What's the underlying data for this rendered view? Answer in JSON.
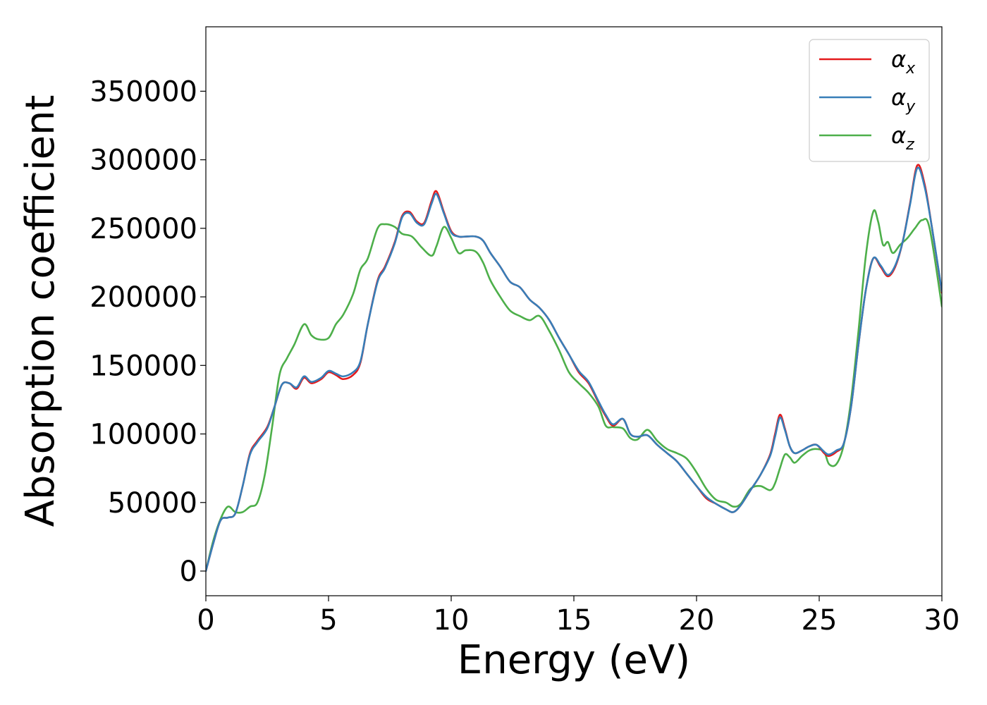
{
  "chart_data": {
    "type": "line",
    "xlabel": "Energy (eV)",
    "ylabel": "Absorption coefficient",
    "xlim": [
      0,
      30
    ],
    "ylim": [
      -18000,
      397000
    ],
    "xticks": [
      0,
      5,
      10,
      15,
      20,
      25,
      30
    ],
    "yticks": [
      0,
      50000,
      100000,
      150000,
      200000,
      250000,
      300000,
      350000
    ],
    "grid": false,
    "legend": {
      "position": "top-right",
      "entries": [
        {
          "base": "α",
          "sub": "x",
          "color": "#e41a1c"
        },
        {
          "base": "α",
          "sub": "y",
          "color": "#377eb8"
        },
        {
          "base": "α",
          "sub": "z",
          "color": "#4daf4a"
        }
      ]
    },
    "series": [
      {
        "name": "αx",
        "color": "#e41a1c",
        "x": [
          0,
          0.3,
          0.6,
          0.9,
          1.2,
          1.5,
          1.8,
          2.1,
          2.5,
          2.8,
          3.1,
          3.4,
          3.7,
          4.0,
          4.3,
          4.7,
          5.0,
          5.3,
          5.6,
          6.0,
          6.3,
          6.6,
          7.0,
          7.3,
          7.7,
          8.0,
          8.3,
          8.6,
          8.9,
          9.2,
          9.4,
          9.7,
          10.0,
          10.3,
          10.6,
          11.0,
          11.3,
          11.6,
          12.0,
          12.4,
          12.8,
          13.2,
          13.6,
          14.0,
          14.4,
          14.8,
          15.2,
          15.6,
          16.0,
          16.3,
          16.6,
          17.0,
          17.3,
          17.6,
          18.0,
          18.4,
          18.8,
          19.2,
          19.6,
          20.0,
          20.4,
          20.8,
          21.2,
          21.5,
          21.8,
          22.2,
          22.6,
          23.0,
          23.2,
          23.4,
          23.6,
          23.8,
          24.0,
          24.3,
          24.6,
          24.9,
          25.2,
          25.4,
          25.7,
          26.0,
          26.3,
          26.6,
          26.9,
          27.2,
          27.5,
          27.8,
          28.1,
          28.4,
          28.7,
          29.0,
          29.3,
          29.6,
          30.0
        ],
        "y": [
          0,
          20000,
          37000,
          39000,
          42000,
          62000,
          86000,
          95000,
          105000,
          120000,
          136000,
          137000,
          133000,
          141000,
          137000,
          140000,
          145000,
          143000,
          140000,
          143000,
          152000,
          180000,
          212000,
          222000,
          240000,
          259000,
          262000,
          255000,
          254000,
          270000,
          277000,
          262000,
          248000,
          244000,
          244000,
          244000,
          241000,
          232000,
          222000,
          211000,
          207000,
          198000,
          192000,
          183000,
          170000,
          158000,
          145000,
          137000,
          123000,
          113000,
          106000,
          111000,
          100000,
          98000,
          99000,
          92000,
          86000,
          80000,
          71000,
          62000,
          53000,
          49000,
          45000,
          43000,
          48000,
          59000,
          70000,
          85000,
          100000,
          114000,
          104000,
          91000,
          86000,
          88000,
          91000,
          92000,
          86000,
          84000,
          87000,
          93000,
          120000,
          165000,
          205000,
          228000,
          222000,
          215000,
          222000,
          240000,
          268000,
          296000,
          282000,
          250000,
          203000
        ]
      },
      {
        "name": "αy",
        "color": "#377eb8",
        "x": [
          0,
          0.3,
          0.6,
          0.9,
          1.2,
          1.5,
          1.8,
          2.1,
          2.5,
          2.8,
          3.1,
          3.4,
          3.7,
          4.0,
          4.3,
          4.7,
          5.0,
          5.3,
          5.6,
          6.0,
          6.3,
          6.6,
          7.0,
          7.3,
          7.7,
          8.0,
          8.3,
          8.6,
          8.9,
          9.2,
          9.4,
          9.7,
          10.0,
          10.3,
          10.6,
          11.0,
          11.3,
          11.6,
          12.0,
          12.4,
          12.8,
          13.2,
          13.6,
          14.0,
          14.4,
          14.8,
          15.2,
          15.6,
          16.0,
          16.3,
          16.6,
          17.0,
          17.3,
          17.6,
          18.0,
          18.4,
          18.8,
          19.2,
          19.6,
          20.0,
          20.4,
          20.8,
          21.2,
          21.5,
          21.8,
          22.2,
          22.6,
          23.0,
          23.2,
          23.4,
          23.6,
          23.8,
          24.0,
          24.3,
          24.6,
          24.9,
          25.2,
          25.4,
          25.7,
          26.0,
          26.3,
          26.6,
          26.9,
          27.2,
          27.5,
          27.8,
          28.1,
          28.4,
          28.7,
          29.0,
          29.3,
          29.6,
          30.0
        ],
        "y": [
          0,
          20000,
          37000,
          39000,
          42000,
          62000,
          85000,
          94000,
          104000,
          120000,
          136000,
          137000,
          134000,
          142000,
          138000,
          141000,
          146000,
          144000,
          142000,
          145000,
          153000,
          180000,
          211000,
          221000,
          239000,
          258000,
          261000,
          254000,
          253000,
          268000,
          275000,
          261000,
          247000,
          244000,
          244000,
          244000,
          241000,
          232000,
          222000,
          211000,
          207000,
          198000,
          192000,
          183000,
          170000,
          158000,
          146000,
          138000,
          124000,
          114000,
          107000,
          111000,
          100000,
          98000,
          99000,
          92000,
          86000,
          80000,
          71000,
          62000,
          54000,
          49000,
          45000,
          43000,
          48000,
          59000,
          70000,
          84000,
          98000,
          112000,
          103000,
          91000,
          86000,
          88000,
          91000,
          92000,
          87000,
          85000,
          88000,
          93000,
          120000,
          165000,
          205000,
          228000,
          223000,
          216000,
          223000,
          240000,
          267000,
          294000,
          280000,
          250000,
          204000
        ]
      },
      {
        "name": "αz",
        "color": "#4daf4a",
        "x": [
          0,
          0.3,
          0.6,
          0.9,
          1.2,
          1.5,
          1.8,
          2.1,
          2.4,
          2.7,
          3.0,
          3.3,
          3.6,
          4.0,
          4.3,
          4.6,
          5.0,
          5.3,
          5.6,
          6.0,
          6.3,
          6.6,
          7.0,
          7.3,
          7.7,
          8.0,
          8.4,
          8.8,
          9.2,
          9.4,
          9.7,
          10.0,
          10.3,
          10.6,
          11.0,
          11.3,
          11.6,
          12.0,
          12.4,
          12.8,
          13.2,
          13.6,
          14.0,
          14.4,
          14.8,
          15.2,
          15.6,
          16.0,
          16.3,
          16.6,
          17.0,
          17.3,
          17.6,
          18.0,
          18.4,
          18.8,
          19.2,
          19.6,
          20.0,
          20.4,
          20.8,
          21.2,
          21.5,
          21.8,
          22.2,
          22.6,
          23.0,
          23.2,
          23.4,
          23.6,
          23.8,
          24.0,
          24.3,
          24.6,
          24.9,
          25.2,
          25.4,
          25.7,
          26.0,
          26.3,
          26.6,
          26.9,
          27.2,
          27.4,
          27.6,
          27.8,
          28.0,
          28.3,
          28.6,
          28.9,
          29.2,
          29.5,
          30.0
        ],
        "y": [
          0,
          22000,
          38000,
          47000,
          43000,
          43000,
          47000,
          50000,
          70000,
          105000,
          143000,
          155000,
          165000,
          180000,
          172000,
          169000,
          170000,
          180000,
          187000,
          202000,
          220000,
          228000,
          250000,
          253000,
          251000,
          246000,
          244000,
          236000,
          230000,
          237000,
          251000,
          243000,
          232000,
          234000,
          233000,
          225000,
          212000,
          200000,
          190000,
          186000,
          183000,
          186000,
          175000,
          161000,
          145000,
          137000,
          130000,
          120000,
          106000,
          105000,
          104000,
          97000,
          96000,
          103000,
          95000,
          89000,
          86000,
          82000,
          72000,
          60000,
          52000,
          50000,
          47000,
          49000,
          60000,
          62000,
          59000,
          64000,
          75000,
          85000,
          83000,
          79000,
          84000,
          88000,
          89000,
          87000,
          78000,
          78000,
          92000,
          125000,
          175000,
          230000,
          262000,
          255000,
          238000,
          240000,
          232000,
          238000,
          243000,
          250000,
          256000,
          250000,
          193000
        ]
      }
    ]
  }
}
